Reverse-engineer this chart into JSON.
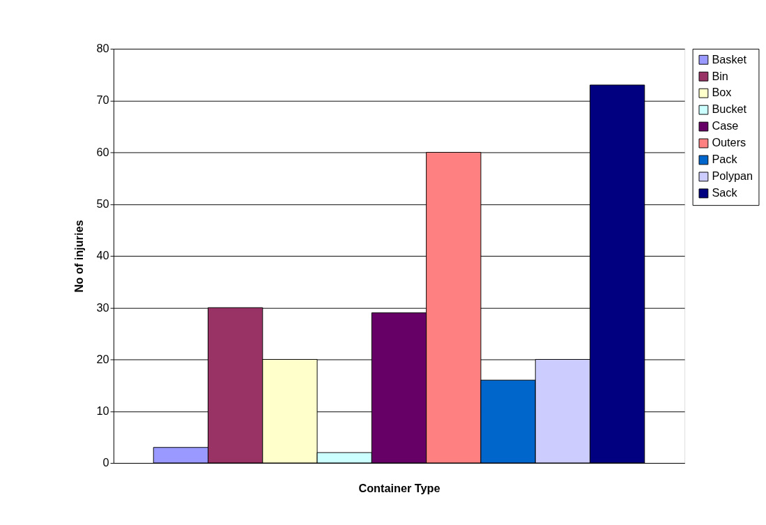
{
  "chart_data": {
    "type": "bar",
    "xlabel": "Container Type",
    "ylabel": "No of injuries",
    "categories": [
      null
    ],
    "series": [
      {
        "name": "Basket",
        "color": "#9999ff",
        "values": [
          3
        ]
      },
      {
        "name": "Bin",
        "color": "#993366",
        "values": [
          30
        ]
      },
      {
        "name": "Box",
        "color": "#ffffcc",
        "values": [
          20
        ]
      },
      {
        "name": "Bucket",
        "color": "#ccffff",
        "values": [
          2
        ]
      },
      {
        "name": "Case",
        "color": "#660066",
        "values": [
          29
        ]
      },
      {
        "name": "Outers",
        "color": "#ff8080",
        "values": [
          60
        ]
      },
      {
        "name": "Pack",
        "color": "#0066cc",
        "values": [
          16
        ]
      },
      {
        "name": "Polypan",
        "color": "#ccccff",
        "values": [
          20
        ]
      },
      {
        "name": "Sack",
        "color": "#000080",
        "values": [
          73
        ]
      }
    ],
    "ylim": [
      0,
      80
    ],
    "yticks": [
      0,
      10,
      20,
      30,
      40,
      50,
      60,
      70,
      80
    ],
    "grid": "y",
    "legend": "right"
  }
}
